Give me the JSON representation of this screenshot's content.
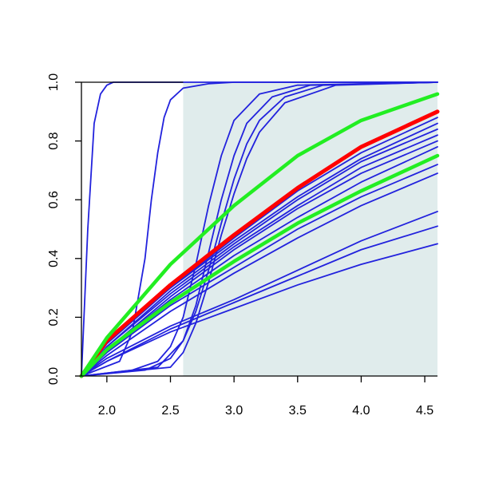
{
  "chart_data": {
    "type": "line",
    "title": "",
    "xlabel": "",
    "ylabel": "",
    "xlim": [
      1.8,
      4.6
    ],
    "ylim": [
      0,
      1
    ],
    "x_ticks": [
      2.0,
      2.5,
      3.0,
      3.5,
      4.0,
      4.5
    ],
    "x_tick_labels": [
      "2.0",
      "2.5",
      "3.0",
      "3.5",
      "4.0",
      "4.5"
    ],
    "y_ticks": [
      0.0,
      0.2,
      0.4,
      0.6,
      0.8,
      1.0
    ],
    "y_tick_labels": [
      "0.0",
      "0.2",
      "0.4",
      "0.6",
      "0.8",
      "1.0"
    ],
    "grid": false,
    "shaded_region": {
      "x_start": 2.6,
      "x_end": 4.6,
      "y_start": 0,
      "y_end": 1,
      "color": "#e0ecec"
    },
    "colors": {
      "blue": "#2222dd",
      "red": "#ff0000",
      "green": "#22ee22",
      "axis": "#000000"
    },
    "series": [
      {
        "color": "blue",
        "x": [
          1.8,
          1.85,
          1.9,
          1.95,
          2.0,
          2.05,
          2.1,
          2.2,
          4.6
        ],
        "y": [
          0.0,
          0.5,
          0.86,
          0.96,
          0.99,
          1.0,
          1.0,
          1.0,
          1.0
        ]
      },
      {
        "color": "blue",
        "x": [
          1.8,
          2.1,
          2.2,
          2.3,
          2.35,
          2.4,
          2.45,
          2.5,
          2.6,
          2.8,
          3.0,
          4.6
        ],
        "y": [
          0.0,
          0.05,
          0.15,
          0.4,
          0.6,
          0.76,
          0.88,
          0.94,
          0.98,
          0.995,
          1.0,
          1.0
        ]
      },
      {
        "color": "blue",
        "x": [
          1.8,
          2.2,
          2.4,
          2.5,
          2.6,
          2.7,
          2.8,
          2.9,
          3.0,
          3.2,
          3.5,
          4.6
        ],
        "y": [
          0.0,
          0.02,
          0.05,
          0.1,
          0.2,
          0.38,
          0.58,
          0.75,
          0.87,
          0.96,
          0.99,
          1.0
        ]
      },
      {
        "color": "blue",
        "x": [
          1.8,
          2.3,
          2.5,
          2.6,
          2.7,
          2.8,
          2.9,
          3.0,
          3.1,
          3.3,
          3.6,
          4.6
        ],
        "y": [
          0.0,
          0.02,
          0.06,
          0.12,
          0.24,
          0.42,
          0.6,
          0.75,
          0.86,
          0.95,
          0.99,
          1.0
        ]
      },
      {
        "color": "blue",
        "x": [
          1.8,
          2.4,
          2.6,
          2.7,
          2.8,
          2.9,
          3.0,
          3.1,
          3.2,
          3.4,
          3.7,
          4.6
        ],
        "y": [
          0.0,
          0.03,
          0.12,
          0.22,
          0.36,
          0.52,
          0.67,
          0.79,
          0.87,
          0.95,
          0.99,
          1.0
        ]
      },
      {
        "color": "blue",
        "x": [
          1.8,
          2.5,
          2.6,
          2.7,
          2.8,
          2.9,
          3.0,
          3.1,
          3.2,
          3.4,
          3.8,
          4.6
        ],
        "y": [
          0.0,
          0.03,
          0.08,
          0.18,
          0.32,
          0.48,
          0.62,
          0.74,
          0.83,
          0.93,
          0.99,
          1.0
        ]
      },
      {
        "color": "red",
        "x": [
          1.8,
          2.0,
          2.5,
          3.0,
          3.5,
          4.0,
          4.6
        ],
        "y": [
          0.0,
          0.12,
          0.31,
          0.48,
          0.64,
          0.78,
          0.9
        ]
      },
      {
        "color": "green",
        "x": [
          1.8,
          2.0,
          2.5,
          3.0,
          3.5,
          4.0,
          4.6
        ],
        "y": [
          0.0,
          0.13,
          0.38,
          0.58,
          0.75,
          0.87,
          0.96
        ]
      },
      {
        "color": "green",
        "x": [
          1.8,
          2.0,
          2.5,
          3.0,
          3.5,
          4.0,
          4.6
        ],
        "y": [
          0.0,
          0.09,
          0.25,
          0.39,
          0.52,
          0.63,
          0.75
        ]
      },
      {
        "color": "blue",
        "x": [
          1.8,
          2.0,
          2.5,
          3.0,
          3.5,
          4.0,
          4.6
        ],
        "y": [
          0.0,
          0.12,
          0.3,
          0.47,
          0.63,
          0.76,
          0.88
        ]
      },
      {
        "color": "blue",
        "x": [
          1.8,
          2.0,
          2.5,
          3.0,
          3.5,
          4.0,
          4.6
        ],
        "y": [
          0.0,
          0.11,
          0.3,
          0.46,
          0.61,
          0.74,
          0.86
        ]
      },
      {
        "color": "blue",
        "x": [
          1.8,
          2.0,
          2.5,
          3.0,
          3.5,
          4.0,
          4.6
        ],
        "y": [
          0.0,
          0.1,
          0.29,
          0.45,
          0.6,
          0.73,
          0.84
        ]
      },
      {
        "color": "blue",
        "x": [
          1.8,
          2.0,
          2.5,
          3.0,
          3.5,
          4.0,
          4.6
        ],
        "y": [
          0.0,
          0.1,
          0.28,
          0.44,
          0.58,
          0.71,
          0.82
        ]
      },
      {
        "color": "blue",
        "x": [
          1.8,
          2.0,
          2.5,
          3.0,
          3.5,
          4.0,
          4.6
        ],
        "y": [
          0.0,
          0.09,
          0.27,
          0.43,
          0.57,
          0.69,
          0.8
        ]
      },
      {
        "color": "blue",
        "x": [
          1.8,
          2.0,
          2.5,
          3.0,
          3.5,
          4.0,
          4.6
        ],
        "y": [
          0.0,
          0.09,
          0.26,
          0.41,
          0.54,
          0.66,
          0.78
        ]
      },
      {
        "color": "blue",
        "x": [
          1.8,
          2.0,
          2.5,
          3.0,
          3.5,
          4.0,
          4.6
        ],
        "y": [
          0.0,
          0.08,
          0.25,
          0.39,
          0.52,
          0.63,
          0.75
        ]
      },
      {
        "color": "blue",
        "x": [
          1.8,
          2.0,
          2.5,
          3.0,
          3.5,
          4.0,
          4.6
        ],
        "y": [
          0.0,
          0.08,
          0.24,
          0.37,
          0.5,
          0.61,
          0.72
        ]
      },
      {
        "color": "blue",
        "x": [
          1.8,
          2.0,
          2.5,
          3.0,
          3.5,
          4.0,
          4.6
        ],
        "y": [
          0.0,
          0.07,
          0.22,
          0.35,
          0.47,
          0.58,
          0.69
        ]
      },
      {
        "color": "blue",
        "x": [
          1.8,
          2.0,
          2.5,
          3.0,
          3.5,
          4.0,
          4.6
        ],
        "y": [
          0.0,
          0.06,
          0.17,
          0.26,
          0.36,
          0.46,
          0.56
        ]
      },
      {
        "color": "blue",
        "x": [
          1.8,
          2.0,
          2.5,
          3.0,
          3.5,
          4.0,
          4.6
        ],
        "y": [
          0.0,
          0.05,
          0.16,
          0.25,
          0.34,
          0.43,
          0.51
        ]
      },
      {
        "color": "blue",
        "x": [
          1.8,
          2.0,
          2.5,
          3.0,
          3.5,
          4.0,
          4.6
        ],
        "y": [
          0.0,
          0.05,
          0.15,
          0.23,
          0.31,
          0.38,
          0.45
        ]
      }
    ]
  }
}
